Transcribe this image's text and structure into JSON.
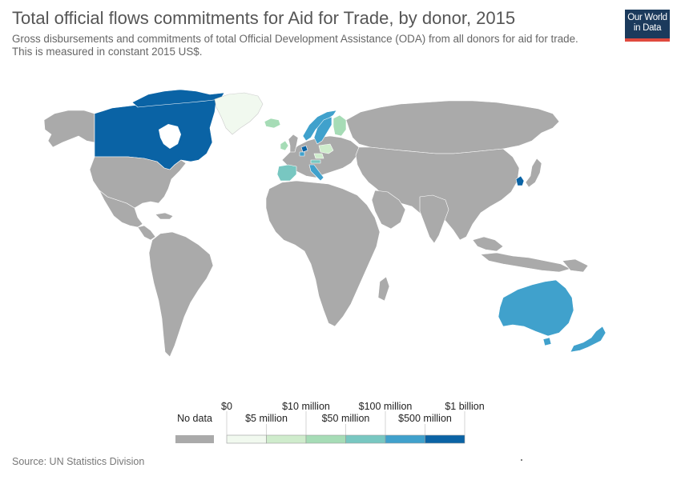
{
  "header": {
    "title": "Total official flows commitments for Aid for Trade, by donor, 2015",
    "subtitle": "Gross disbursements and commitments of total Official Development Assistance (ODA) from all donors for aid for trade. This is measured in constant 2015 US$."
  },
  "logo": {
    "line1": "Our World",
    "line2": "in Data"
  },
  "legend": {
    "no_data_label": "No data",
    "no_data_color": "#aaaaaa",
    "top_labels": [
      "$0",
      "$10 million",
      "$100 million",
      "$1 billion"
    ],
    "bottom_labels": [
      "$5 million",
      "$50 million",
      "$500 million"
    ],
    "bins": [
      {
        "color": "#f1f9ef"
      },
      {
        "color": "#cfeccc"
      },
      {
        "color": "#a6dcb6"
      },
      {
        "color": "#78c7c1"
      },
      {
        "color": "#40a1cc"
      },
      {
        "color": "#0a63a5"
      }
    ]
  },
  "map": {
    "ocean_color": "#ffffff",
    "land_color": "#aaaaaa",
    "border_color": "#ffffff",
    "highlighted_countries": [
      {
        "name": "Canada",
        "color": "#0a63a5"
      },
      {
        "name": "Australia",
        "color": "#40a1cc"
      },
      {
        "name": "New Zealand",
        "color": "#40a1cc"
      },
      {
        "name": "Norway",
        "color": "#40a1cc"
      },
      {
        "name": "Sweden",
        "color": "#40a1cc"
      },
      {
        "name": "Finland",
        "color": "#a6dcb6"
      },
      {
        "name": "South Korea",
        "color": "#0a63a5"
      },
      {
        "name": "Spain",
        "color": "#78c7c1"
      },
      {
        "name": "Italy",
        "color": "#40a1cc"
      },
      {
        "name": "Ireland",
        "color": "#a6dcb6"
      },
      {
        "name": "Iceland",
        "color": "#a6dcb6"
      },
      {
        "name": "Netherlands",
        "color": "#0a63a5"
      },
      {
        "name": "Belgium",
        "color": "#40a1cc"
      },
      {
        "name": "Luxembourg",
        "color": "#40a1cc"
      },
      {
        "name": "Austria",
        "color": "#78c7c1"
      },
      {
        "name": "Czech Republic",
        "color": "#cfeccc"
      },
      {
        "name": "Poland",
        "color": "#cfeccc"
      },
      {
        "name": "Slovakia",
        "color": "#cfeccc"
      },
      {
        "name": "Slovenia",
        "color": "#cfeccc"
      }
    ]
  },
  "footer": {
    "source": "Source: UN Statistics Division"
  }
}
